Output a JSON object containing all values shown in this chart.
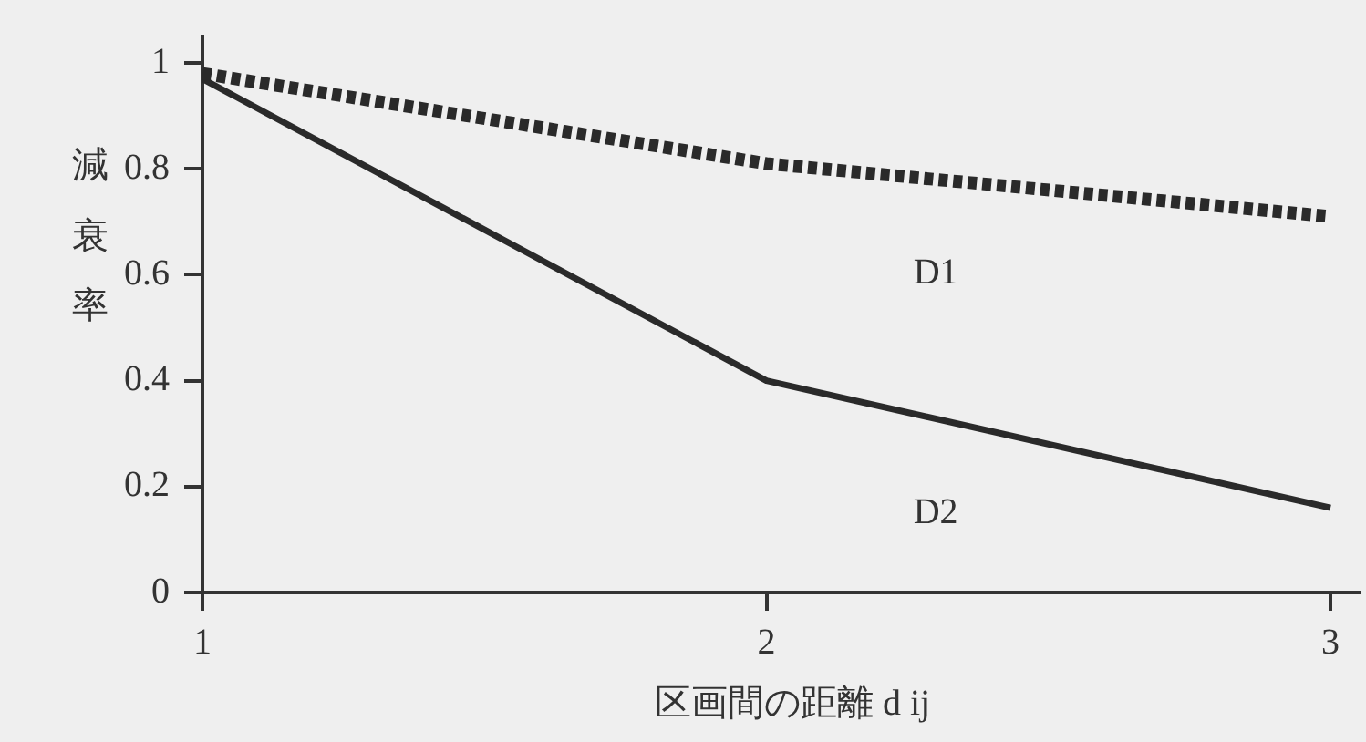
{
  "chart_data": {
    "type": "line",
    "xlabel": "区画間の距離 d ij",
    "ylabel": "減衰率",
    "x": [
      1,
      2,
      3
    ],
    "xlim": [
      1,
      3.05
    ],
    "xticks": [
      1,
      2,
      3
    ],
    "ylim": [
      0,
      1.05
    ],
    "yticks": [
      0,
      0.2,
      0.4,
      0.6,
      0.8,
      1
    ],
    "grid": false,
    "legend": false,
    "marker": "none",
    "series": [
      {
        "name": "D1",
        "color": "#2a2a2a",
        "line_style": "dotted",
        "values": [
          0.98,
          0.81,
          0.71
        ]
      },
      {
        "name": "D2",
        "color": "#2a2a2a",
        "line_style": "solid",
        "values": [
          0.97,
          0.4,
          0.16
        ]
      }
    ]
  }
}
